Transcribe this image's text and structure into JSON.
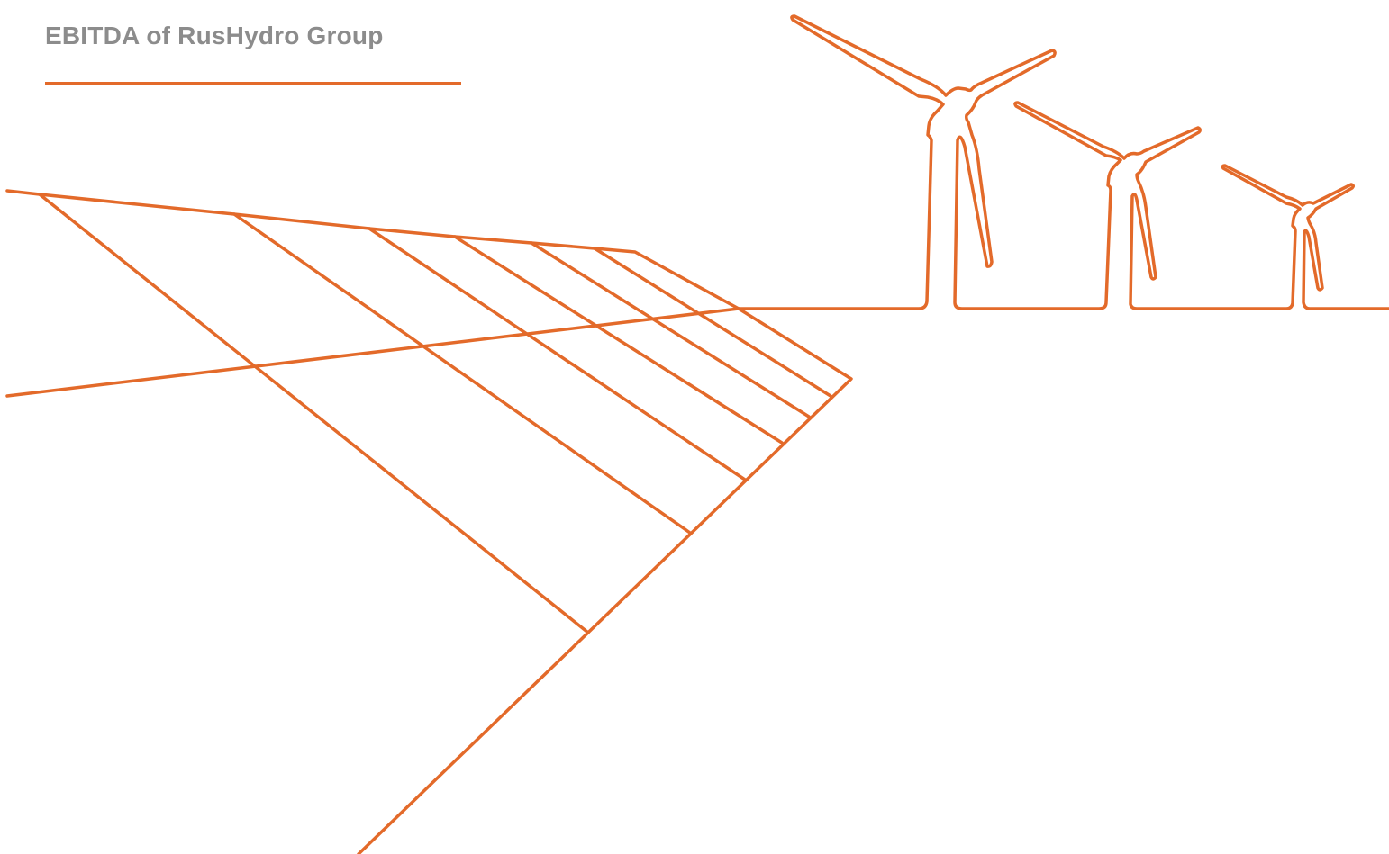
{
  "page": {
    "title": "EBITDA of RusHydro Group"
  },
  "colors": {
    "accent": "#e36a2a",
    "title_text": "#8c8c8c",
    "background": "#ffffff"
  },
  "illustration": {
    "icon": "solar-panel-and-wind-turbines-line-art",
    "wind_turbine_count": 3
  }
}
